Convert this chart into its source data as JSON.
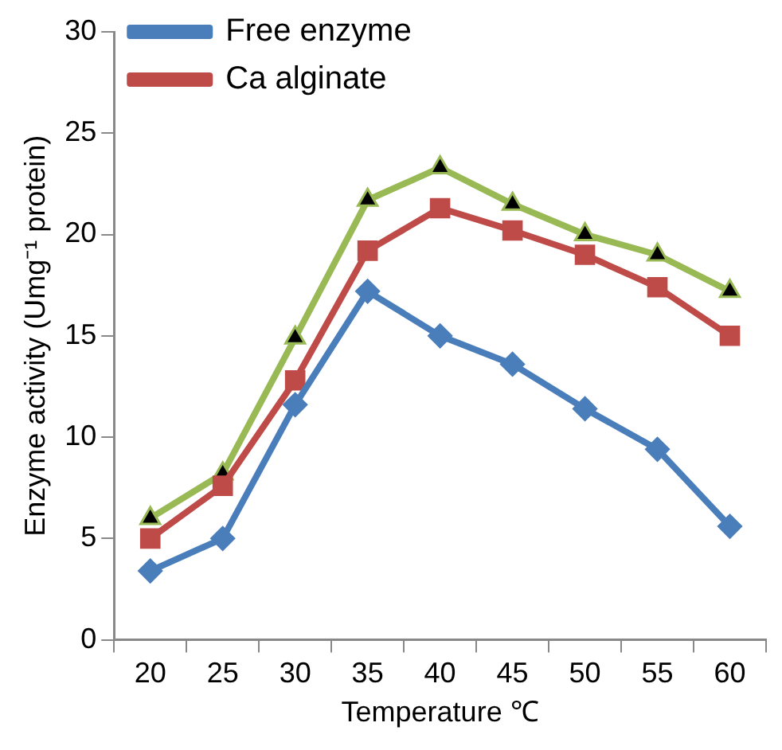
{
  "chart_data": {
    "type": "line",
    "xlabel": "Temperature ℃",
    "ylabel": "Enzyme activity (Umg⁻¹ protein)",
    "categories": [
      "20",
      "25",
      "30",
      "35",
      "40",
      "45",
      "50",
      "55",
      "60"
    ],
    "series": [
      {
        "name": "Free enzyme",
        "color": "#4a7ebb",
        "marker": "diamond",
        "values": [
          3.4,
          5.0,
          11.6,
          17.2,
          15.0,
          13.6,
          11.4,
          9.4,
          5.6
        ]
      },
      {
        "name": "Ca alginate",
        "color": "#be4b48",
        "marker": "square",
        "values": [
          5.0,
          7.6,
          12.8,
          19.2,
          21.3,
          20.2,
          19.0,
          17.4,
          15.0
        ]
      },
      {
        "color": "#98b954",
        "marker": "triangle",
        "values": [
          6.0,
          8.2,
          14.9,
          21.7,
          23.3,
          21.5,
          20.0,
          19.0,
          17.2
        ]
      }
    ],
    "ylim": [
      0,
      30
    ],
    "yticks": [
      0,
      5,
      10,
      15,
      20,
      25,
      30
    ],
    "grid": false,
    "legend": "top left",
    "line_style": "solid"
  }
}
